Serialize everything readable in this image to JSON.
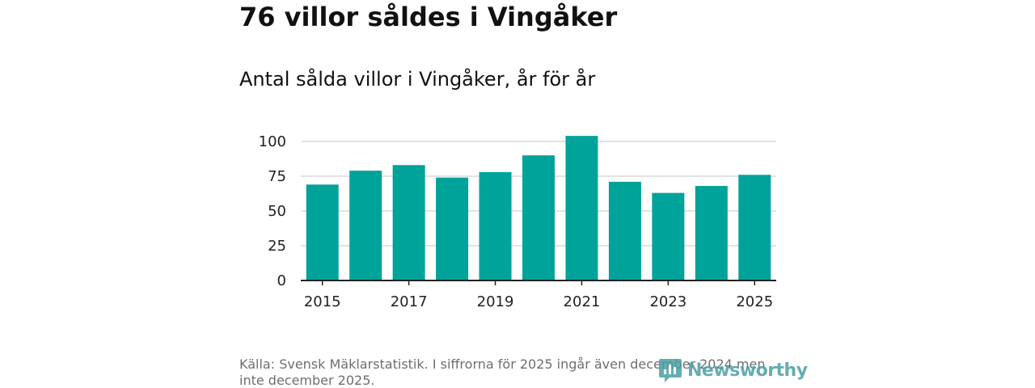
{
  "title": "76 villor såldes i Vingåker",
  "subtitle": "Antal sålda villor i Vingåker, år för år",
  "source": "Källa: Svensk Mäklarstatistik. I siffrorna för 2025 ingår även december 2024 men inte december 2025.",
  "logo": {
    "text": "Newsworthy",
    "icon": "newsworthy-logo-icon"
  },
  "colors": {
    "bar": "#00a39a",
    "grid": "#d9d9d9",
    "axis": "#222222",
    "logo": "#4a9fa5"
  },
  "chart_data": {
    "type": "bar",
    "title": "Antal sålda villor i Vingåker, år för år",
    "xlabel": "",
    "ylabel": "",
    "categories": [
      "2015",
      "2016",
      "2017",
      "2018",
      "2019",
      "2020",
      "2021",
      "2022",
      "2023",
      "2024",
      "2025"
    ],
    "values": [
      69,
      79,
      83,
      74,
      78,
      90,
      104,
      71,
      63,
      68,
      76
    ],
    "ylim": [
      0,
      110
    ],
    "yticks": [
      0,
      25,
      50,
      75,
      100
    ],
    "xtick_labels": [
      "2015",
      "2017",
      "2019",
      "2021",
      "2023",
      "2025"
    ],
    "grid": true,
    "legend": "none"
  }
}
